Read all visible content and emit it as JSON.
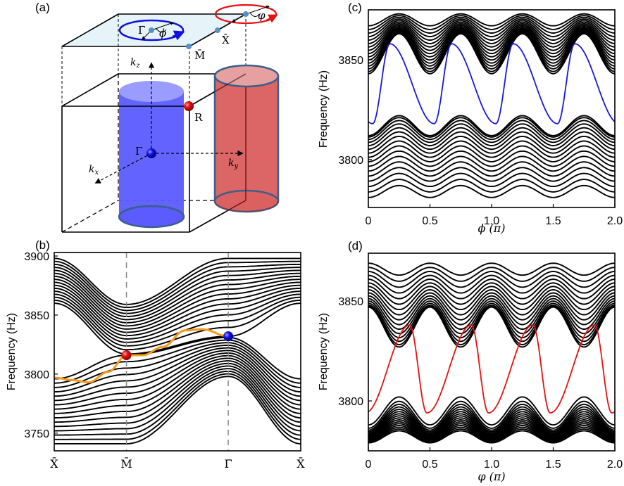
{
  "figure": {
    "panel_labels": [
      "(a)",
      "(b)",
      "(c)",
      "(d)"
    ]
  },
  "schematic": {
    "points": {
      "gamma_bar": "Γ̄",
      "M_bar": "M̄",
      "X_bar": "X̄",
      "R": "R",
      "Gamma": "Γ",
      "phi": "ϕ",
      "varphi": "φ"
    },
    "axes": {
      "kx": "k",
      "kx_sub": "x",
      "ky": "k",
      "ky_sub": "y",
      "kz": "k",
      "kz_sub": "z"
    },
    "colors": {
      "blue_loop": "#1010e0",
      "red_loop": "#e81010",
      "blue_cylinder": "#5b5bff",
      "red_cylinder": "#db6060",
      "surface_plane": "#e6f3f8",
      "point_marker": "#5a8fc8"
    }
  },
  "chart_data": [
    {
      "id": "b",
      "type": "line",
      "title": "",
      "xlabel": "",
      "ylabel": "Frequency (Hz)",
      "ylim": [
        3735,
        3903
      ],
      "yticks": [
        3750,
        3800,
        3850,
        3900
      ],
      "xtick_labels": [
        "X̄",
        "M̄",
        "Γ̄",
        "X̄"
      ],
      "xtick_positions": [
        0,
        0.293,
        0.706,
        1.0
      ],
      "k_path": "X̄–M̄–Γ̄–X̄",
      "bands": {
        "upper_bulk": {
          "count": 16,
          "range_at_X": [
            3860,
            3898
          ],
          "range_at_M": [
            3816,
            3858
          ],
          "range_at_Gamma": [
            3832,
            3898
          ]
        },
        "lower_bulk": {
          "count": 16,
          "range_at_X": [
            3740,
            3796
          ],
          "range_at_M": [
            3740,
            3816
          ],
          "range_at_Gamma": [
            3798,
            3832
          ]
        }
      },
      "surface_state": {
        "color": "#f59a1c",
        "points": [
          [
            0.0,
            3797
          ],
          [
            0.07,
            3795
          ],
          [
            0.14,
            3793
          ],
          [
            0.22,
            3802
          ],
          [
            0.293,
            3816
          ],
          [
            0.36,
            3816
          ],
          [
            0.44,
            3823
          ],
          [
            0.53,
            3837
          ],
          [
            0.6,
            3838
          ],
          [
            0.706,
            3832
          ]
        ]
      },
      "markers": [
        {
          "name": "R-projection",
          "x": 0.293,
          "y": 3816,
          "color": "#e01010"
        },
        {
          "name": "Gamma-projection",
          "x": 0.706,
          "y": 3832,
          "color": "#1010e0"
        }
      ],
      "vlines": [
        0.293,
        0.706
      ]
    },
    {
      "id": "c",
      "type": "line",
      "xlabel": "ϕ (π)",
      "ylabel": "Frequency (Hz)",
      "xlim": [
        0,
        2.0
      ],
      "ylim": [
        3776,
        3875
      ],
      "xticks": [
        0,
        0.5,
        1.0,
        1.5,
        2.0
      ],
      "xtick_labels": [
        "0",
        "0.5",
        "1.0",
        "1.5",
        "2.0"
      ],
      "yticks": [
        3800,
        3850
      ],
      "ytick_labels": [
        "3800",
        "3850"
      ],
      "bands": {
        "upper": {
          "count": 16,
          "min_edge": [
            3846,
            3860
          ],
          "top": [
            3866,
            3872
          ],
          "period_pi": 0.5
        },
        "lower": {
          "count": 16,
          "top_edge": [
            3815,
            3823
          ],
          "bottom": [
            3780,
            3789
          ],
          "period_pi": 0.5
        }
      },
      "edge_state": {
        "color": "#1818e0",
        "description": "monotonically decreasing chiral surface mode, 4 windings across 0–2π",
        "period_pi": 0.5,
        "max": 3858,
        "min": 3818
      }
    },
    {
      "id": "d",
      "type": "line",
      "xlabel": "φ (π)",
      "ylabel": "Frequency (Hz)",
      "xlim": [
        0,
        2.0
      ],
      "ylim": [
        3775,
        3874
      ],
      "xticks": [
        0,
        0.5,
        1.0,
        1.5,
        2.0
      ],
      "xtick_labels": [
        "0",
        "0.5",
        "1.0",
        "1.5",
        "2.0"
      ],
      "yticks": [
        3800,
        3850
      ],
      "ytick_labels": [
        "3800",
        "3850"
      ],
      "bands": {
        "upper": {
          "count": 16,
          "bottom_edge": [
            3833,
            3840
          ],
          "top": [
            3862,
            3871
          ],
          "period_pi": 0.5
        },
        "lower": {
          "count": 16,
          "top_edge": [
            3789,
            3800
          ],
          "bottom": [
            3777,
            3786
          ],
          "period_pi": 0.5
        }
      },
      "edge_state": {
        "color": "#e81010",
        "description": "monotonically increasing chiral surface mode, 4 windings across 0–2π",
        "period_pi": 0.5,
        "max": 3838,
        "min": 3794
      }
    }
  ]
}
